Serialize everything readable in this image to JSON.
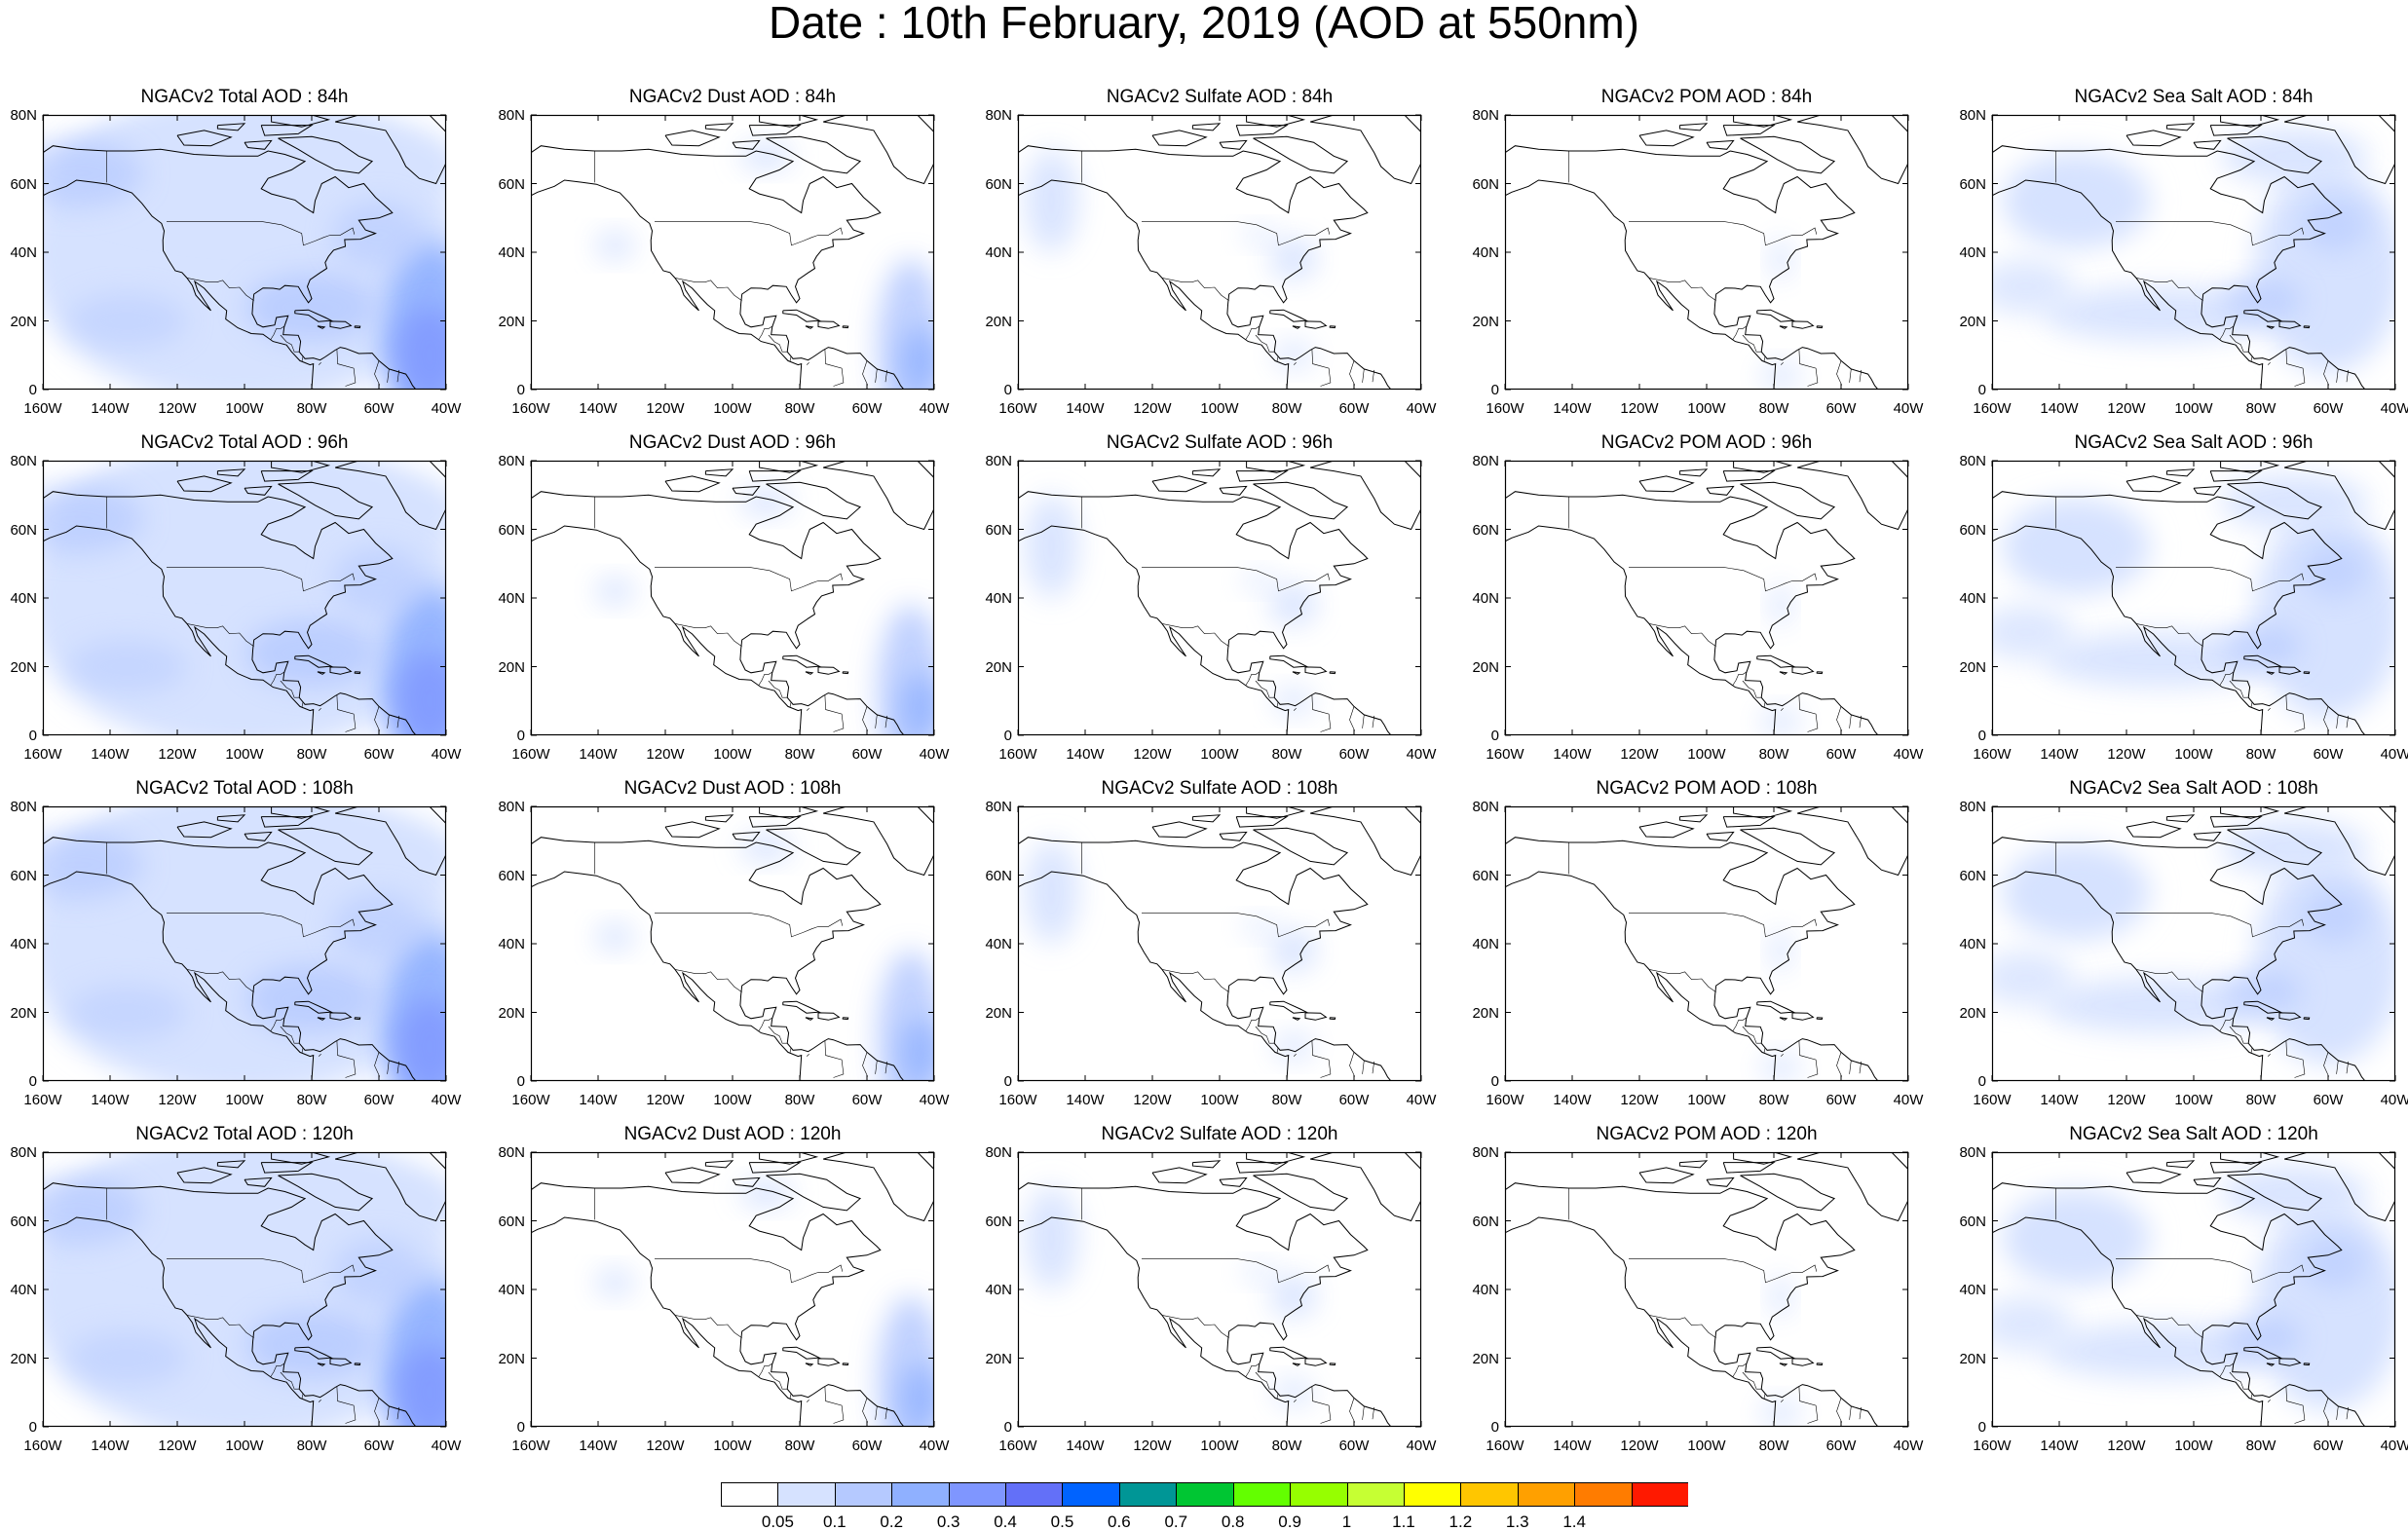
{
  "title": "Date : 10th February, 2019 (AOD at 550nm)",
  "rows": [
    {
      "panels": [
        {
          "title": "NGACv2 Total AOD : 84h",
          "species": "total"
        },
        {
          "title": "NGACv2 Dust AOD : 84h",
          "species": "dust"
        },
        {
          "title": "NGACv2 Sulfate AOD : 84h",
          "species": "sulfate"
        },
        {
          "title": "NGACv2 POM AOD : 84h",
          "species": "pom"
        },
        {
          "title": "NGACv2 Sea Salt AOD : 84h",
          "species": "seasalt"
        }
      ]
    },
    {
      "panels": [
        {
          "title": "NGACv2 Total AOD : 96h",
          "species": "total"
        },
        {
          "title": "NGACv2 Dust AOD : 96h",
          "species": "dust"
        },
        {
          "title": "NGACv2 Sulfate AOD : 96h",
          "species": "sulfate"
        },
        {
          "title": "NGACv2 POM AOD : 96h",
          "species": "pom"
        },
        {
          "title": "NGACv2 Sea Salt AOD : 96h",
          "species": "seasalt"
        }
      ]
    },
    {
      "panels": [
        {
          "title": "NGACv2 Total AOD : 108h",
          "species": "total"
        },
        {
          "title": "NGACv2 Dust AOD : 108h",
          "species": "dust"
        },
        {
          "title": "NGACv2 Sulfate AOD : 108h",
          "species": "sulfate"
        },
        {
          "title": "NGACv2 POM AOD : 108h",
          "species": "pom"
        },
        {
          "title": "NGACv2 Sea Salt AOD : 108h",
          "species": "seasalt"
        }
      ]
    },
    {
      "panels": [
        {
          "title": "NGACv2 Total AOD : 120h",
          "species": "total"
        },
        {
          "title": "NGACv2 Dust AOD : 120h",
          "species": "dust"
        },
        {
          "title": "NGACv2 Sulfate AOD : 120h",
          "species": "sulfate"
        },
        {
          "title": "NGACv2 POM AOD : 120h",
          "species": "pom"
        },
        {
          "title": "NGACv2 Sea Salt  AOD : 120h",
          "species": "seasalt"
        }
      ]
    }
  ],
  "lat_ticks": [
    "80N",
    "60N",
    "40N",
    "20N",
    "0"
  ],
  "lon_ticks": [
    "160W",
    "140W",
    "120W",
    "100W",
    "80W",
    "60W",
    "40W"
  ],
  "colorbar": {
    "colors": [
      "#ffffff",
      "#d6e2ff",
      "#b5c9ff",
      "#8fb0ff",
      "#7f96ff",
      "#6370f8",
      "#0063ff",
      "#009696",
      "#00c633",
      "#63ff00",
      "#96ff00",
      "#c6ff33",
      "#ffff00",
      "#ffc600",
      "#ffa000",
      "#ff7c00",
      "#ff1900"
    ],
    "labels": [
      "0.05",
      "0.1",
      "0.2",
      "0.3",
      "0.4",
      "0.5",
      "0.6",
      "0.7",
      "0.8",
      "0.9",
      "1",
      "1.1",
      "1.2",
      "1.3",
      "1.4"
    ]
  }
}
